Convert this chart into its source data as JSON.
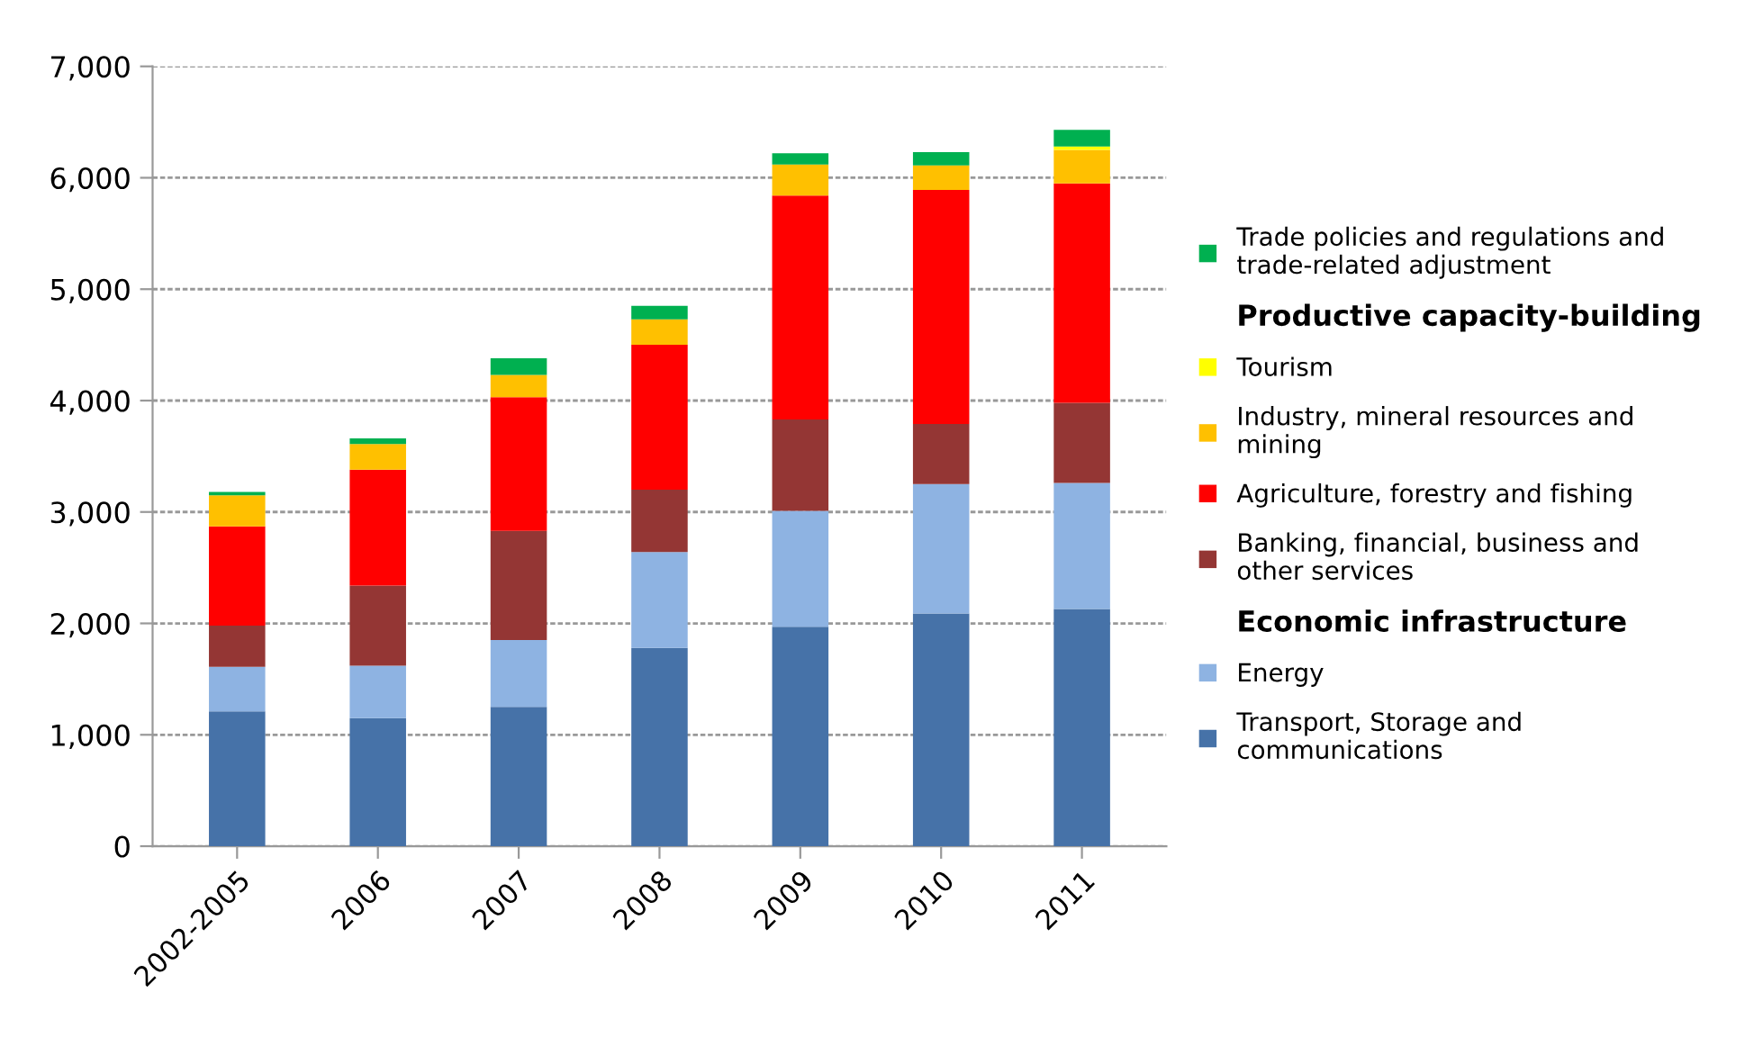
{
  "chart_data": {
    "type": "bar",
    "stacked": true,
    "categories": [
      "2002-2005",
      "2006",
      "2007",
      "2008",
      "2009",
      "2010",
      "2011"
    ],
    "series": [
      {
        "name": "Transport, Storage and\ncommunications",
        "color": "#4672a8",
        "values": [
          1210,
          1150,
          1250,
          1780,
          1970,
          2090,
          2130
        ]
      },
      {
        "name": "Energy",
        "color": "#8eb3e2",
        "values": [
          400,
          470,
          600,
          860,
          1040,
          1160,
          1130
        ]
      },
      {
        "name": "Banking, financial, business and\nother services",
        "color": "#943634",
        "values": [
          370,
          720,
          980,
          560,
          820,
          540,
          720
        ]
      },
      {
        "name": "Agriculture, forestry and fishing",
        "color": "#ff0000",
        "values": [
          890,
          1040,
          1200,
          1300,
          2010,
          2100,
          1970
        ]
      },
      {
        "name": "Industry, mineral resources and\nmining",
        "color": "#ffc000",
        "values": [
          280,
          230,
          200,
          230,
          280,
          220,
          300
        ]
      },
      {
        "name": "Tourism",
        "color": "#ffff00",
        "values": [
          0,
          0,
          0,
          0,
          0,
          0,
          30
        ]
      },
      {
        "name": "Trade policies and regulations and\ntrade-related adjustment",
        "color": "#00b050",
        "values": [
          30,
          50,
          150,
          120,
          100,
          120,
          150
        ]
      }
    ],
    "annotations": [
      "Productive capacity-building",
      "Economic infrastructure"
    ],
    "ylim": [
      0,
      7000
    ],
    "yticks": [
      {
        "value": 0,
        "label": "0"
      },
      {
        "value": 1000,
        "label": "1,000"
      },
      {
        "value": 2000,
        "label": "2,000"
      },
      {
        "value": 3000,
        "label": "3,000"
      },
      {
        "value": 4000,
        "label": "4,000"
      },
      {
        "value": 5000,
        "label": "5,000"
      },
      {
        "value": 6000,
        "label": "6,000"
      },
      {
        "value": 7000,
        "label": "7,000"
      }
    ],
    "grid": "y",
    "legend": "right"
  }
}
